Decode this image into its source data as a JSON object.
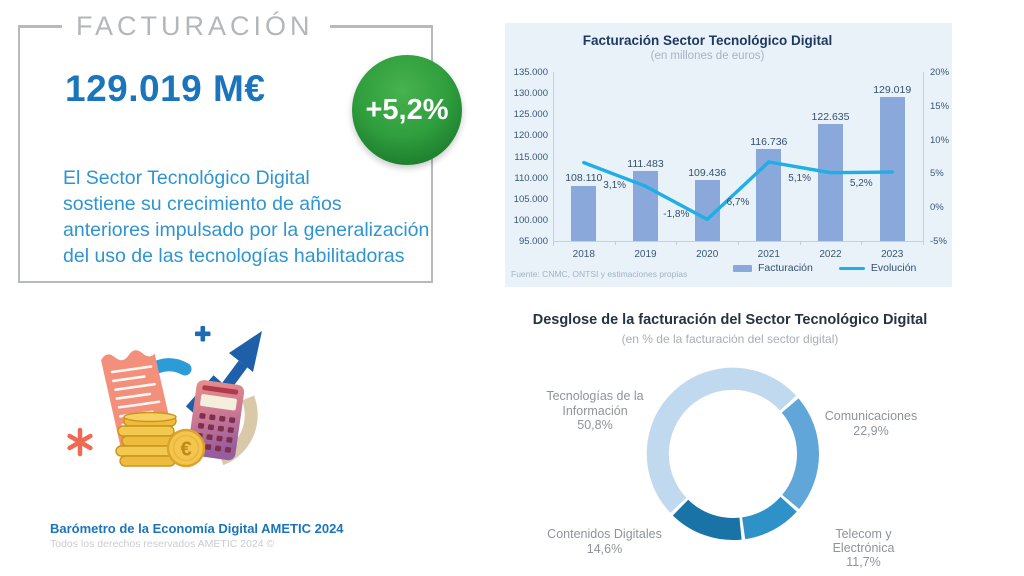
{
  "facturacion_box": {
    "title": "FACTURACIÓN",
    "value": "129.019 M€",
    "growth_badge": "+5,2%",
    "badge_color": "#2f9e3d",
    "accent_color": "#1b75bc",
    "description_lines": [
      "El Sector Tecnológico Digital",
      "sostiene su crecimiento de años",
      "anteriores impulsado por la generalización",
      "del uso de las tecnologías habilitadoras"
    ]
  },
  "chart_data": [
    {
      "type": "bar",
      "title": "Facturación Sector Tecnológico Digital",
      "subtitle": "(en millones de euros)",
      "background": "#e9f1f9",
      "grid": false,
      "legend_position": "bottom",
      "source": "Fuente: CNMC, ONTSI y estimaciones propias",
      "categories": [
        "2018",
        "2019",
        "2020",
        "2021",
        "2022",
        "2023"
      ],
      "series": [
        {
          "name": "Facturación",
          "type": "bar",
          "color": "#8aa8da",
          "values": [
            108110,
            111483,
            109436,
            116736,
            122635,
            129019
          ],
          "value_labels": [
            "108.110",
            "111.483",
            "109.436",
            "116.736",
            "122.635",
            "129.019"
          ]
        },
        {
          "name": "Evolución",
          "type": "line",
          "color": "#1faee5",
          "values": [
            6.6,
            3.1,
            -1.8,
            6.7,
            5.1,
            5.2
          ],
          "value_labels": [
            null,
            "3,1%",
            "-1,8%",
            "6,7%",
            "5,1%",
            "5,2%"
          ]
        }
      ],
      "y_left": {
        "min": 95000,
        "max": 135000,
        "step": 5000,
        "tick_labels": [
          "95.000",
          "100.000",
          "105.000",
          "110.000",
          "115.000",
          "120.000",
          "125.000",
          "130.000",
          "135.000"
        ]
      },
      "y_right": {
        "min": -5,
        "max": 20,
        "step": 5,
        "tick_labels": [
          "-5%",
          "0%",
          "5%",
          "10%",
          "15%",
          "20%"
        ]
      }
    },
    {
      "type": "pie",
      "donut": true,
      "title": "Desglose de la facturación del Sector Tecnológico Digital",
      "subtitle": "(en % de la facturación del sector digital)",
      "start_angle_deg": 225.6,
      "segments": [
        {
          "label": "Tecnologías de la Información",
          "label_lines": [
            "Tecnologías de la",
            "Información"
          ],
          "value": 50.8,
          "display": "50,8%",
          "color": "#c1d9ee"
        },
        {
          "label": "Comunicaciones",
          "label_lines": [
            "Comunicaciones"
          ],
          "value": 22.9,
          "display": "22,9%",
          "color": "#61a6d9"
        },
        {
          "label": "Telecom y Electrónica",
          "label_lines": [
            "Telecom y Electrónica"
          ],
          "value": 11.7,
          "display": "11,7%",
          "color": "#2e91c7"
        },
        {
          "label": "Contenidos Digitales",
          "label_lines": [
            "Contenidos Digitales"
          ],
          "value": 14.6,
          "display": "14,6%",
          "color": "#1a73a6"
        }
      ]
    }
  ],
  "illustration": {
    "icons": [
      "receipt-icon",
      "calculator-icon",
      "coin-stack-icon",
      "euro-coin-icon",
      "growth-arrow-icon",
      "swoosh-icon",
      "curved-arc-icon",
      "plus-icon",
      "asterisk-icon"
    ]
  },
  "footer": {
    "line1": "Barómetro de la Economía Digital AMETIC 2024",
    "line2": "Todos los derechos reservados AMETIC 2024 ©"
  }
}
